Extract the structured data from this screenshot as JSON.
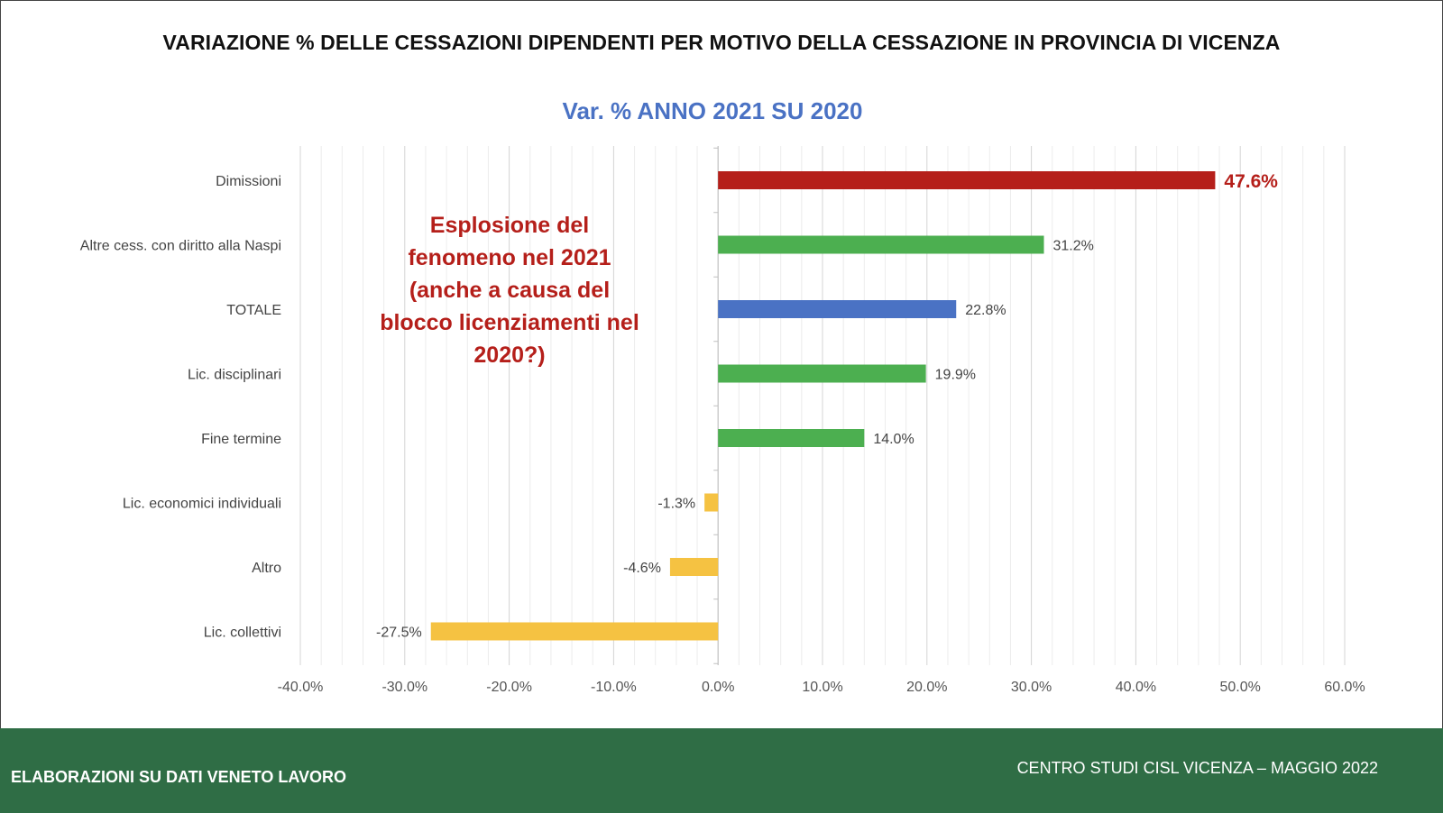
{
  "main_title": "VARIAZIONE % DELLE CESSAZIONI DIPENDENTI PER MOTIVO DELLA CESSAZIONE IN PROVINCIA DI VICENZA",
  "annotation_lines": [
    "Esplosione del",
    "fenomeno nel 2021",
    "(anche a causa del",
    "blocco licenziamenti nel",
    "2020?)"
  ],
  "footer": {
    "left": "ELABORAZIONI SU DATI VENETO LAVORO",
    "right": "CENTRO STUDI CISL VICENZA – MAGGIO 2022"
  },
  "colors": {
    "red": "#b51f1a",
    "green": "#4caf50",
    "blue": "#4a72c4",
    "yellow": "#f5c242",
    "footer_bg": "#2f6d45"
  },
  "chart_data": {
    "type": "bar",
    "orientation": "horizontal",
    "title": "Var. % ANNO 2021 SU 2020",
    "categories": [
      "Dimissioni",
      "Altre cess. con diritto alla Naspi",
      "TOTALE",
      "Lic. disciplinari",
      "Fine termine",
      "Lic. economici individuali",
      "Altro",
      "Lic. collettivi"
    ],
    "values": [
      47.6,
      31.2,
      22.8,
      19.9,
      14.0,
      -1.3,
      -4.6,
      -27.5
    ],
    "data_labels": [
      "47.6%",
      "31.2%",
      "22.8%",
      "19.9%",
      "14.0%",
      "-1.3%",
      "-4.6%",
      "-27.5%"
    ],
    "bar_colors": [
      "#b51f1a",
      "#4caf50",
      "#4a72c4",
      "#4caf50",
      "#4caf50",
      "#f5c242",
      "#f5c242",
      "#f5c242"
    ],
    "xlim": [
      -40,
      60
    ],
    "x_ticks": [
      -40,
      -30,
      -20,
      -10,
      0,
      10,
      20,
      30,
      40,
      50,
      60
    ],
    "x_tick_labels": [
      "-40.0%",
      "-30.0%",
      "-20.0%",
      "-10.0%",
      "0.0%",
      "10.0%",
      "20.0%",
      "30.0%",
      "40.0%",
      "50.0%",
      "60.0%"
    ],
    "grid": true,
    "xlabel": "",
    "ylabel": ""
  }
}
